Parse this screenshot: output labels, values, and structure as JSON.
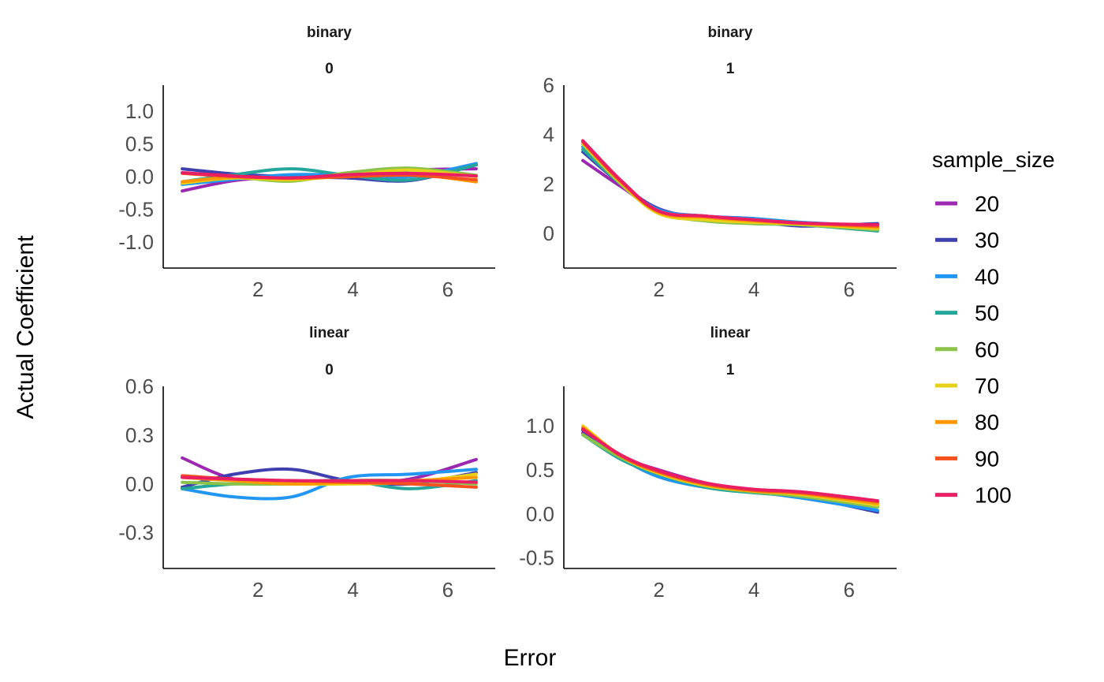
{
  "chart_data": {
    "type": "line",
    "xlabel": "Error",
    "ylabel": "Actual Coefficient",
    "legend": {
      "title": "sample_size",
      "position": "right"
    },
    "series_meta": [
      {
        "name": "20",
        "color": "#9c27b0"
      },
      {
        "name": "30",
        "color": "#3f3fb0"
      },
      {
        "name": "40",
        "color": "#2196f3"
      },
      {
        "name": "50",
        "color": "#26a69a"
      },
      {
        "name": "60",
        "color": "#8bc34a"
      },
      {
        "name": "70",
        "color": "#e8d219"
      },
      {
        "name": "80",
        "color": "#ff9800"
      },
      {
        "name": "90",
        "color": "#f4511e"
      },
      {
        "name": "100",
        "color": "#e91e63"
      }
    ],
    "x_ticks": [
      "2",
      "4",
      "6"
    ],
    "x_tick_values": [
      2,
      4,
      6
    ],
    "grid": false,
    "panels": [
      {
        "strip": [
          "binary",
          "0"
        ],
        "xlim": [
          0,
          7
        ],
        "ylim": [
          -1.4,
          1.4
        ],
        "y_ticks": [
          "1.0",
          "0.5",
          "0.0",
          "-0.5",
          "-1.0"
        ],
        "y_tick_values": [
          1.0,
          0.5,
          0.0,
          -0.5,
          -1.0
        ],
        "x": [
          0.4,
          1.5,
          2.7,
          3.9,
          5.2,
          6.6
        ],
        "series": [
          {
            "name": "20",
            "values": [
              -0.22,
              -0.06,
              0.0,
              0.02,
              0.1,
              0.12
            ]
          },
          {
            "name": "30",
            "values": [
              0.12,
              0.04,
              0.0,
              -0.02,
              -0.06,
              0.18
            ]
          },
          {
            "name": "40",
            "values": [
              -0.12,
              -0.04,
              0.03,
              0.02,
              0.0,
              0.2
            ]
          },
          {
            "name": "50",
            "values": [
              -0.08,
              0.03,
              0.12,
              0.02,
              -0.05,
              0.18
            ]
          },
          {
            "name": "60",
            "values": [
              -0.1,
              -0.02,
              -0.07,
              0.06,
              0.13,
              0.02
            ]
          },
          {
            "name": "70",
            "values": [
              -0.1,
              -0.02,
              -0.05,
              0.02,
              0.1,
              0.0
            ]
          },
          {
            "name": "80",
            "values": [
              -0.08,
              -0.01,
              -0.03,
              0.0,
              0.04,
              -0.08
            ]
          },
          {
            "name": "90",
            "values": [
              0.05,
              0.0,
              -0.02,
              0.0,
              0.02,
              -0.05
            ]
          },
          {
            "name": "100",
            "values": [
              0.06,
              0.01,
              -0.02,
              0.03,
              0.05,
              0.01
            ]
          }
        ]
      },
      {
        "strip": [
          "binary",
          "1"
        ],
        "xlim": [
          0,
          7
        ],
        "ylim": [
          -1.4,
          6.0
        ],
        "y_ticks": [
          "6",
          "4",
          "2",
          "0"
        ],
        "y_tick_values": [
          6,
          4,
          2,
          0
        ],
        "x": [
          0.4,
          1.2,
          2.0,
          3.0,
          4.0,
          5.0,
          6.6
        ],
        "series": [
          {
            "name": "20",
            "values": [
              2.95,
              1.9,
              0.95,
              0.7,
              0.6,
              0.4,
              0.35
            ]
          },
          {
            "name": "30",
            "values": [
              3.3,
              2.0,
              1.0,
              0.6,
              0.5,
              0.3,
              0.4
            ]
          },
          {
            "name": "40",
            "values": [
              3.5,
              2.05,
              0.95,
              0.7,
              0.6,
              0.45,
              0.3
            ]
          },
          {
            "name": "50",
            "values": [
              3.4,
              2.0,
              0.9,
              0.55,
              0.4,
              0.35,
              0.1
            ]
          },
          {
            "name": "60",
            "values": [
              3.6,
              2.0,
              0.85,
              0.5,
              0.4,
              0.35,
              0.15
            ]
          },
          {
            "name": "70",
            "values": [
              3.65,
              2.05,
              0.8,
              0.55,
              0.45,
              0.38,
              0.2
            ]
          },
          {
            "name": "80",
            "values": [
              3.7,
              2.1,
              0.85,
              0.65,
              0.5,
              0.4,
              0.25
            ]
          },
          {
            "name": "90",
            "values": [
              3.7,
              2.1,
              0.9,
              0.7,
              0.55,
              0.42,
              0.3
            ]
          },
          {
            "name": "100",
            "values": [
              3.75,
              2.15,
              0.9,
              0.7,
              0.55,
              0.42,
              0.35
            ]
          }
        ]
      },
      {
        "strip": [
          "linear",
          "0"
        ],
        "xlim": [
          0,
          7
        ],
        "ylim": [
          -0.52,
          0.6
        ],
        "y_ticks": [
          "0.6",
          "0.3",
          "0.0",
          "-0.3"
        ],
        "y_tick_values": [
          0.6,
          0.3,
          0.0,
          -0.3
        ],
        "x": [
          0.4,
          1.5,
          2.7,
          3.9,
          5.2,
          6.6
        ],
        "series": [
          {
            "name": "20",
            "values": [
              0.16,
              0.03,
              0.02,
              0.01,
              0.03,
              0.15
            ]
          },
          {
            "name": "30",
            "values": [
              -0.02,
              0.06,
              0.09,
              0.02,
              0.0,
              0.07
            ]
          },
          {
            "name": "40",
            "values": [
              -0.03,
              -0.08,
              -0.08,
              0.04,
              0.06,
              0.09
            ]
          },
          {
            "name": "50",
            "values": [
              -0.03,
              0.0,
              0.01,
              0.02,
              -0.03,
              0.02
            ]
          },
          {
            "name": "60",
            "values": [
              0.01,
              0.0,
              0.0,
              0.02,
              0.02,
              0.0
            ]
          },
          {
            "name": "70",
            "values": [
              0.04,
              0.02,
              0.0,
              0.0,
              0.01,
              0.06
            ]
          },
          {
            "name": "80",
            "values": [
              0.04,
              0.02,
              0.0,
              0.01,
              0.02,
              0.04
            ]
          },
          {
            "name": "90",
            "values": [
              0.05,
              0.03,
              0.02,
              0.01,
              0.0,
              -0.02
            ]
          },
          {
            "name": "100",
            "values": [
              0.04,
              0.03,
              0.02,
              0.02,
              0.02,
              0.01
            ]
          }
        ]
      },
      {
        "strip": [
          "linear",
          "1"
        ],
        "xlim": [
          0,
          7
        ],
        "ylim": [
          -0.62,
          1.45
        ],
        "y_ticks": [
          "1.0",
          "0.5",
          "0.0",
          "-0.5"
        ],
        "y_tick_values": [
          1.0,
          0.5,
          0.0,
          -0.5
        ],
        "x": [
          0.4,
          1.2,
          2.0,
          3.0,
          4.0,
          5.0,
          6.6
        ],
        "series": [
          {
            "name": "20",
            "values": [
              0.92,
              0.65,
              0.5,
              0.35,
              0.27,
              0.22,
              0.12
            ]
          },
          {
            "name": "30",
            "values": [
              0.95,
              0.66,
              0.45,
              0.32,
              0.25,
              0.2,
              0.02
            ]
          },
          {
            "name": "40",
            "values": [
              0.97,
              0.64,
              0.42,
              0.3,
              0.25,
              0.18,
              0.04
            ]
          },
          {
            "name": "50",
            "values": [
              0.9,
              0.62,
              0.45,
              0.3,
              0.24,
              0.2,
              0.08
            ]
          },
          {
            "name": "60",
            "values": [
              0.9,
              0.64,
              0.46,
              0.32,
              0.25,
              0.2,
              0.08
            ]
          },
          {
            "name": "70",
            "values": [
              1.0,
              0.66,
              0.46,
              0.32,
              0.26,
              0.22,
              0.1
            ]
          },
          {
            "name": "80",
            "values": [
              0.98,
              0.66,
              0.47,
              0.33,
              0.26,
              0.23,
              0.12
            ]
          },
          {
            "name": "90",
            "values": [
              0.97,
              0.66,
              0.48,
              0.34,
              0.27,
              0.24,
              0.14
            ]
          },
          {
            "name": "100",
            "values": [
              0.96,
              0.67,
              0.49,
              0.35,
              0.28,
              0.25,
              0.15
            ]
          }
        ]
      }
    ]
  }
}
